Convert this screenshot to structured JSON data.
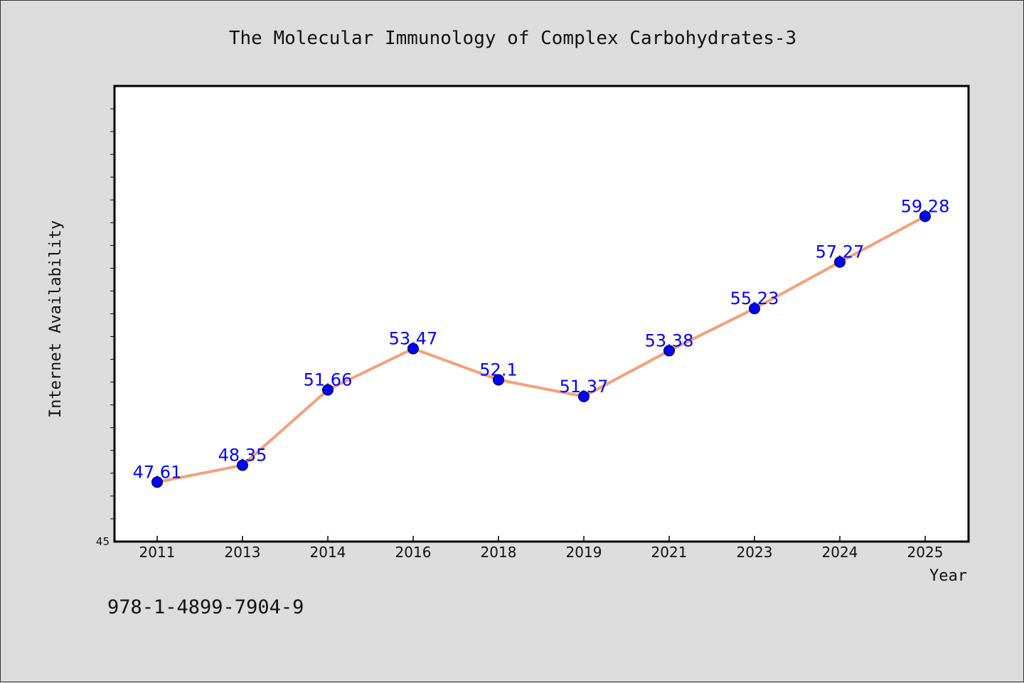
{
  "chart_data": {
    "type": "line",
    "title": "The Molecular Immunology of Complex Carbohydrates-3",
    "xlabel": "Year",
    "ylabel": "Internet Availability",
    "categories": [
      "2011",
      "2013",
      "2014",
      "2016",
      "2018",
      "2019",
      "2021",
      "2023",
      "2024",
      "2025"
    ],
    "values": [
      47.61,
      48.35,
      51.66,
      53.47,
      52.1,
      51.37,
      53.38,
      55.23,
      57.27,
      59.28
    ],
    "data_labels": [
      "47.61",
      "48.35",
      "51.66",
      "53.47",
      "52.1",
      "51.37",
      "53.38",
      "55.23",
      "57.27",
      "59.28"
    ],
    "ylim": [
      45,
      65
    ],
    "y_tick_labels": [
      "45"
    ],
    "grid": false,
    "legend": "none",
    "line_color": "#f4a07a",
    "marker_color": "#0000ff",
    "label_color": "#0000ff"
  },
  "footer": {
    "isbn": "978-1-4899-7904-9"
  }
}
